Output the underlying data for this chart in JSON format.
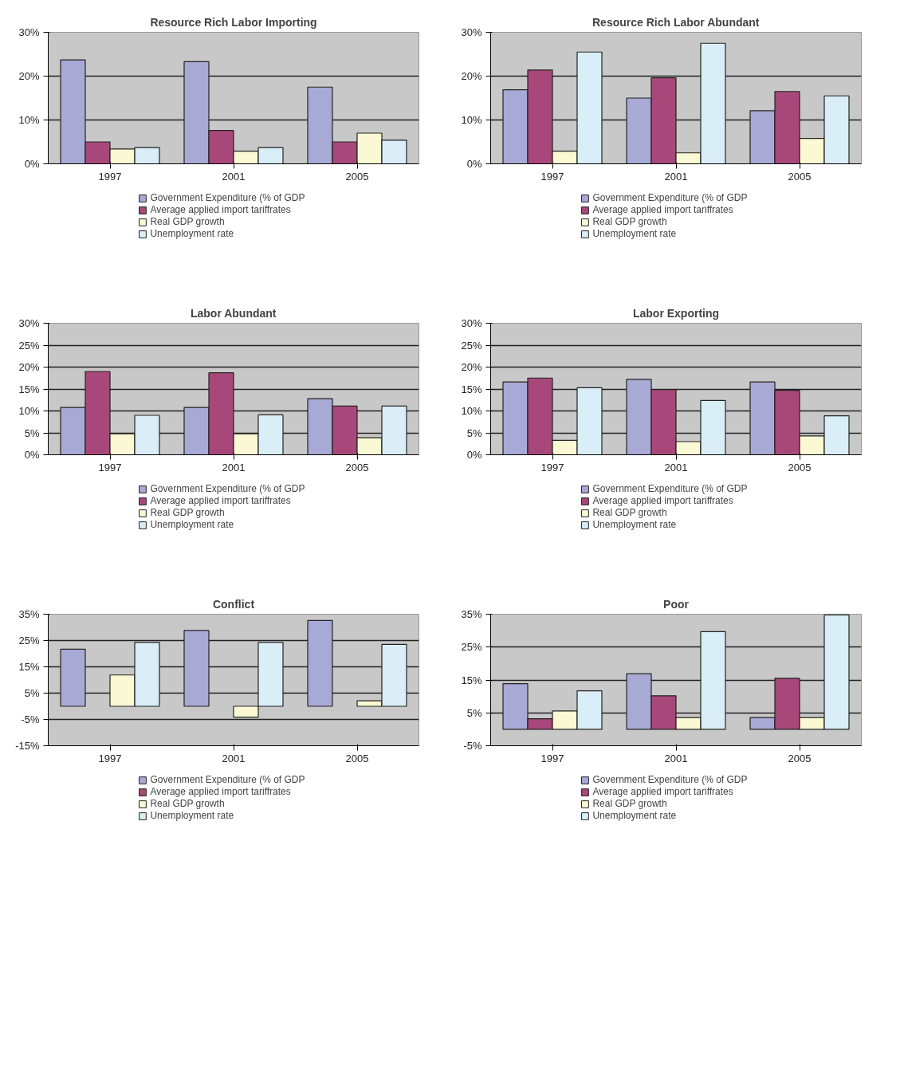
{
  "chart_data": [
    {
      "type": "bar",
      "title": "Resource Rich Labor Importing",
      "categories": [
        "1997",
        "2001",
        "2005"
      ],
      "ylim": [
        0,
        30
      ],
      "yticks": [
        {
          "value": 0,
          "label": "0%"
        },
        {
          "value": 10,
          "label": "10%"
        },
        {
          "value": 20,
          "label": "20%"
        },
        {
          "value": 30,
          "label": "30%"
        }
      ],
      "grid": "y",
      "legend": "bottom",
      "series": [
        {
          "name": "Government Expenditure (% of GDP",
          "color": "#a9a9d6",
          "values": [
            23.7,
            23.3,
            17.5
          ]
        },
        {
          "name": "Average applied import tariffrates",
          "color": "#a8487a",
          "values": [
            5.0,
            7.6,
            5.0
          ]
        },
        {
          "name": "Real GDP growth",
          "color": "#fbf9d3",
          "values": [
            3.4,
            2.9,
            7.0
          ]
        },
        {
          "name": "Unemployment rate",
          "color": "#d9eef7",
          "values": [
            3.7,
            3.7,
            5.4
          ]
        }
      ]
    },
    {
      "type": "bar",
      "title": "Resource Rich Labor Abundant",
      "categories": [
        "1997",
        "2001",
        "2005"
      ],
      "ylim": [
        0,
        30
      ],
      "yticks": [
        {
          "value": 0,
          "label": "0%"
        },
        {
          "value": 10,
          "label": "10%"
        },
        {
          "value": 20,
          "label": "20%"
        },
        {
          "value": 30,
          "label": "30%"
        }
      ],
      "grid": "y",
      "legend": "bottom",
      "series": [
        {
          "name": "Government Expenditure (% of GDP",
          "color": "#a9a9d6",
          "values": [
            16.9,
            15.0,
            12.1
          ]
        },
        {
          "name": "Average applied import tariffrates",
          "color": "#a8487a",
          "values": [
            21.4,
            19.6,
            16.5
          ]
        },
        {
          "name": "Real GDP growth",
          "color": "#fbf9d3",
          "values": [
            2.9,
            2.5,
            5.8
          ]
        },
        {
          "name": "Unemployment rate",
          "color": "#d9eef7",
          "values": [
            25.5,
            27.5,
            15.5
          ]
        }
      ]
    },
    {
      "type": "bar",
      "title": "Labor Abundant",
      "categories": [
        "1997",
        "2001",
        "2005"
      ],
      "ylim": [
        0,
        30
      ],
      "yticks": [
        {
          "value": 0,
          "label": "0%"
        },
        {
          "value": 5,
          "label": "5%"
        },
        {
          "value": 10,
          "label": "10%"
        },
        {
          "value": 15,
          "label": "15%"
        },
        {
          "value": 20,
          "label": "20%"
        },
        {
          "value": 25,
          "label": "25%"
        },
        {
          "value": 30,
          "label": "30%"
        }
      ],
      "grid": "y",
      "legend": "bottom",
      "series": [
        {
          "name": "Government Expenditure (% of GDP",
          "color": "#a9a9d6",
          "values": [
            10.8,
            10.8,
            12.8
          ]
        },
        {
          "name": "Average applied import tariffrates",
          "color": "#a8487a",
          "values": [
            19.0,
            18.7,
            11.1
          ]
        },
        {
          "name": "Real GDP growth",
          "color": "#fbf9d3",
          "values": [
            4.8,
            4.8,
            3.9
          ]
        },
        {
          "name": "Unemployment rate",
          "color": "#d9eef7",
          "values": [
            9.0,
            9.1,
            11.1
          ]
        }
      ]
    },
    {
      "type": "bar",
      "title": "Labor Exporting",
      "categories": [
        "1997",
        "2001",
        "2005"
      ],
      "ylim": [
        0,
        30
      ],
      "yticks": [
        {
          "value": 0,
          "label": "0%"
        },
        {
          "value": 5,
          "label": "5%"
        },
        {
          "value": 10,
          "label": "10%"
        },
        {
          "value": 15,
          "label": "15%"
        },
        {
          "value": 20,
          "label": "20%"
        },
        {
          "value": 25,
          "label": "25%"
        },
        {
          "value": 30,
          "label": "30%"
        }
      ],
      "grid": "y",
      "legend": "bottom",
      "series": [
        {
          "name": "Government Expenditure (% of GDP",
          "color": "#a9a9d6",
          "values": [
            16.6,
            17.2,
            16.6
          ]
        },
        {
          "name": "Average applied import tariffrates",
          "color": "#a8487a",
          "values": [
            17.5,
            14.9,
            14.7
          ]
        },
        {
          "name": "Real GDP growth",
          "color": "#fbf9d3",
          "values": [
            3.3,
            3.0,
            4.3
          ]
        },
        {
          "name": "Unemployment rate",
          "color": "#d9eef7",
          "values": [
            15.3,
            12.4,
            8.9
          ]
        }
      ]
    },
    {
      "type": "bar",
      "title": "Conflict",
      "categories": [
        "1997",
        "2001",
        "2005"
      ],
      "ylim": [
        -15,
        35
      ],
      "yticks": [
        {
          "value": -15,
          "label": "-15%"
        },
        {
          "value": -5,
          "label": "-5%"
        },
        {
          "value": 5,
          "label": "5%"
        },
        {
          "value": 15,
          "label": "15%"
        },
        {
          "value": 25,
          "label": "25%"
        },
        {
          "value": 35,
          "label": "35%"
        }
      ],
      "grid": "y",
      "legend": "bottom",
      "series": [
        {
          "name": "Government Expenditure (% of GDP",
          "color": "#a9a9d6",
          "values": [
            21.7,
            28.8,
            32.6
          ]
        },
        {
          "name": "Average applied import tariffrates",
          "color": "#a8487a",
          "values": [
            null,
            null,
            null
          ]
        },
        {
          "name": "Real GDP growth",
          "color": "#fbf9d3",
          "values": [
            11.9,
            -4.1,
            2.1
          ]
        },
        {
          "name": "Unemployment rate",
          "color": "#d9eef7",
          "values": [
            24.3,
            24.3,
            23.5
          ]
        }
      ]
    },
    {
      "type": "bar",
      "title": "Poor",
      "categories": [
        "1997",
        "2001",
        "2005"
      ],
      "ylim": [
        -5,
        35
      ],
      "yticks": [
        {
          "value": -5,
          "label": "-5%"
        },
        {
          "value": 5,
          "label": "5%"
        },
        {
          "value": 15,
          "label": "15%"
        },
        {
          "value": 25,
          "label": "25%"
        },
        {
          "value": 35,
          "label": "35%"
        }
      ],
      "grid": "y",
      "legend": "bottom",
      "series": [
        {
          "name": "Government Expenditure (% of GDP",
          "color": "#a9a9d6",
          "values": [
            13.9,
            16.9,
            3.6
          ]
        },
        {
          "name": "Average applied import tariffrates",
          "color": "#a8487a",
          "values": [
            3.2,
            10.2,
            15.5
          ]
        },
        {
          "name": "Real GDP growth",
          "color": "#fbf9d3",
          "values": [
            5.6,
            3.6,
            3.6
          ]
        },
        {
          "name": "Unemployment rate",
          "color": "#d9eef7",
          "values": [
            11.7,
            29.7,
            34.8
          ]
        }
      ]
    }
  ]
}
